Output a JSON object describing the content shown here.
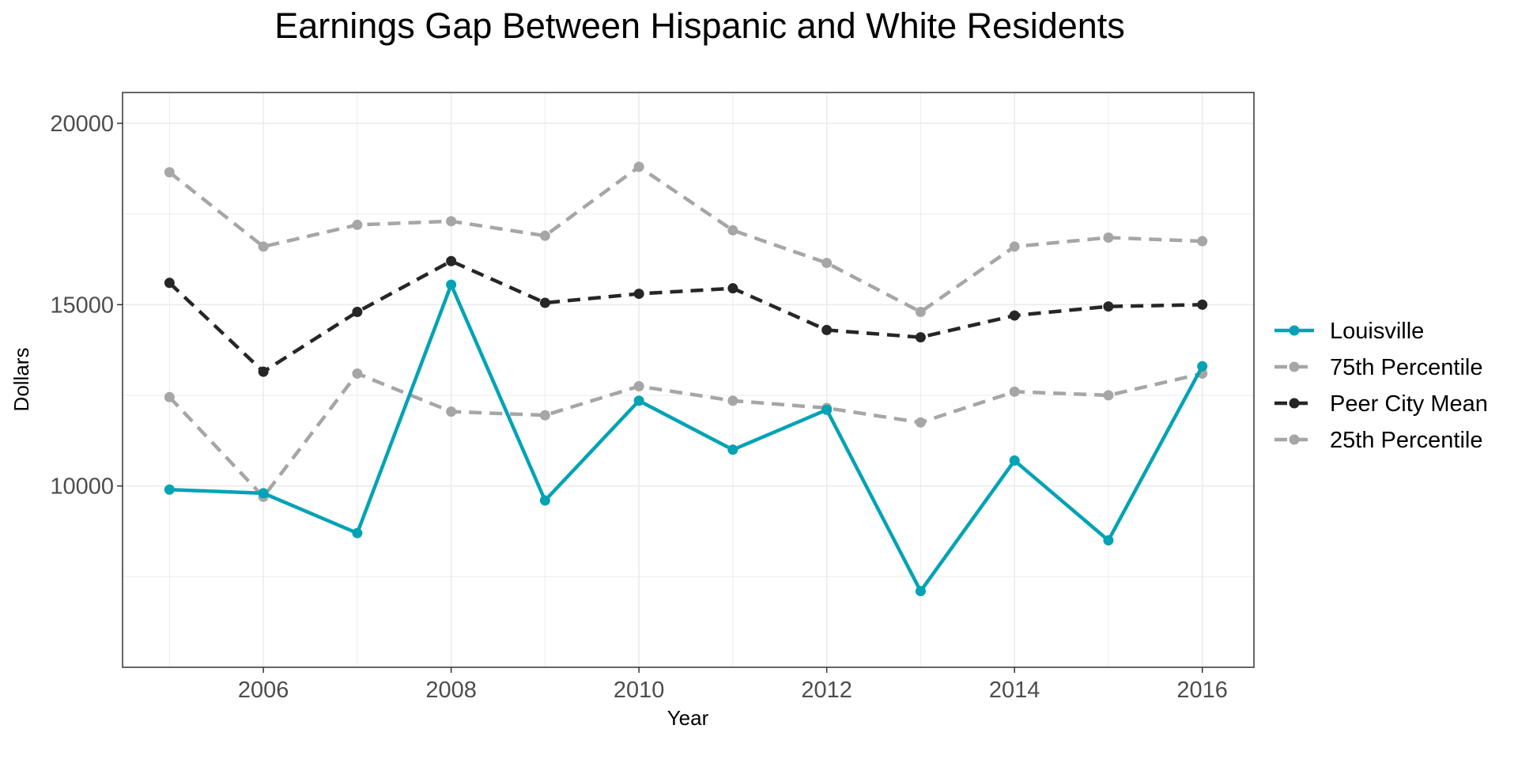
{
  "chart_data": {
    "type": "line",
    "title": "Earnings Gap Between Hispanic and White Residents",
    "xlabel": "Year",
    "ylabel": "Dollars",
    "x": [
      2005,
      2006,
      2007,
      2008,
      2009,
      2010,
      2011,
      2012,
      2013,
      2014,
      2015,
      2016
    ],
    "x_ticks": [
      "2006",
      "2008",
      "2010",
      "2012",
      "2014",
      "2016"
    ],
    "y_ticks": [
      "10000",
      "15000",
      "20000"
    ],
    "xlim": [
      2004.5,
      2016.55
    ],
    "ylim": [
      5000,
      20850
    ],
    "grid": true,
    "legend_position": "right",
    "series": [
      {
        "name": "Louisville",
        "color": "#00a3b4",
        "style": "solid",
        "values": [
          9900,
          9800,
          8700,
          15550,
          9600,
          12350,
          11000,
          12100,
          7100,
          10700,
          8500,
          13300
        ]
      },
      {
        "name": "75th Percentile",
        "color": "#a6a6a6",
        "style": "dashed",
        "values": [
          18650,
          16600,
          17200,
          17300,
          16900,
          18800,
          17050,
          16150,
          14800,
          16600,
          16850,
          16750
        ]
      },
      {
        "name": "Peer City Mean",
        "color": "#262626",
        "style": "dashed",
        "values": [
          15600,
          13150,
          14800,
          16200,
          15050,
          15300,
          15450,
          14300,
          14100,
          14700,
          14950,
          15000
        ]
      },
      {
        "name": "25th Percentile",
        "color": "#a6a6a6",
        "style": "dashed",
        "values": [
          12450,
          9700,
          13100,
          12050,
          11950,
          12750,
          12350,
          12150,
          11750,
          12600,
          12500,
          13100
        ]
      }
    ]
  }
}
